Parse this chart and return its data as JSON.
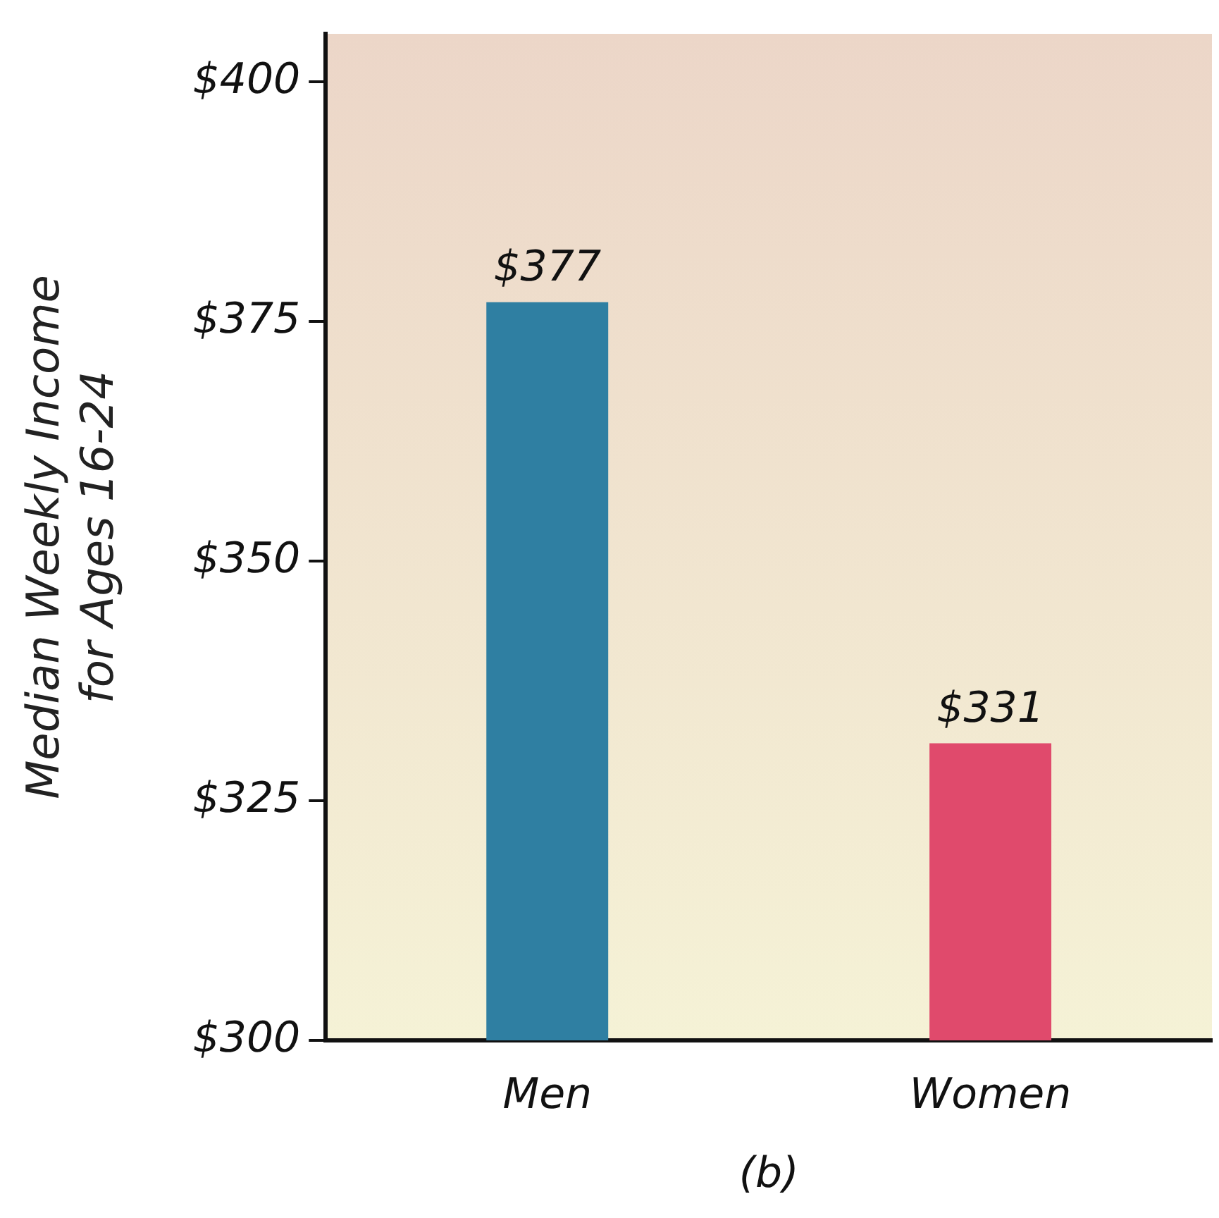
{
  "chart_data": {
    "type": "bar",
    "ylabel": "Median Weekly Income\nfor Ages 16-24",
    "categories": [
      "Men",
      "Women"
    ],
    "values": [
      377,
      331
    ],
    "colors": [
      "#2f7fa2",
      "#e04a6c"
    ],
    "value_labels": [
      "$377",
      "$331"
    ],
    "ylim": [
      300,
      405
    ],
    "yticks": [
      {
        "value": 300,
        "label": "$300"
      },
      {
        "value": 325,
        "label": "$325"
      },
      {
        "value": 350,
        "label": "$350"
      },
      {
        "value": 375,
        "label": "$375"
      },
      {
        "value": 400,
        "label": "$400"
      }
    ],
    "grid": false,
    "annotations": [
      "(b)"
    ]
  }
}
